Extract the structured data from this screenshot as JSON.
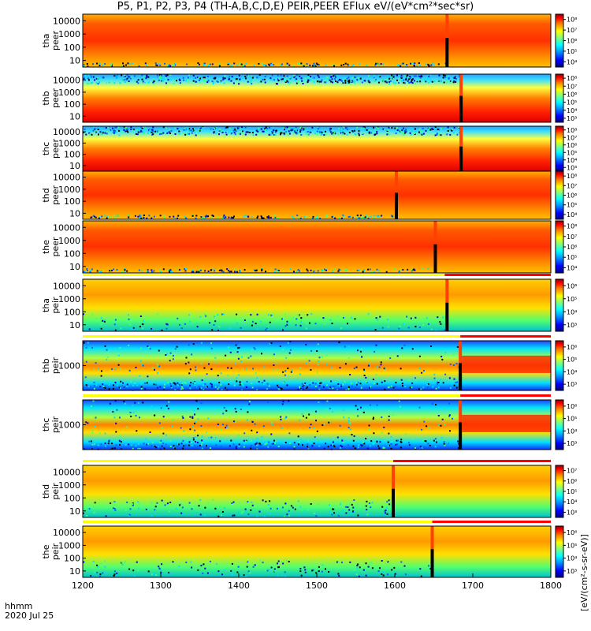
{
  "title": "P5, P1, P2, P3, P4 (TH-A,B,C,D,E) PEIR,PEER EFlux eV/(eV*cm²*sec*sr)",
  "footer": {
    "line1": "hhmm",
    "line2": "2020 Jul 25"
  },
  "colorbar_unit_label": "[eV/(cm²-s-sr-eV)]",
  "chart_data": {
    "type": "heatmap",
    "time_axis": {
      "ticks": [
        "1200",
        "1300",
        "1400",
        "1500",
        "1600",
        "1700",
        "1800"
      ],
      "range_hhmm": [
        1200,
        1800
      ]
    },
    "panels": [
      {
        "label": "tha\npeer",
        "yticks": [
          "10",
          "100",
          "1000",
          "10000"
        ],
        "cbar_ticks": [
          "10⁴",
          "10⁵",
          "10⁶",
          "10⁷",
          "10⁸"
        ],
        "bar": "none",
        "spike_hhmm": 1667
      },
      {
        "label": "thb\npeer",
        "yticks": [
          "10",
          "100",
          "1000",
          "10000"
        ],
        "cbar_ticks": [
          "10³",
          "10⁴",
          "10⁵",
          "10⁶",
          "10⁷",
          "10⁸"
        ],
        "bar": "none",
        "spike_hhmm": 1685
      },
      {
        "label": "thc\npeer",
        "yticks": [
          "10",
          "100",
          "1000",
          "10000"
        ],
        "cbar_ticks": [
          "10³",
          "10⁴",
          "10⁵",
          "10⁶",
          "10⁷",
          "10⁸"
        ],
        "bar": "none",
        "spike_hhmm": 1685
      },
      {
        "label": "thd\npeer",
        "yticks": [
          "10",
          "100",
          "1000",
          "10000"
        ],
        "cbar_ticks": [
          "10⁴",
          "10⁵",
          "10⁶",
          "10⁷",
          "10⁸"
        ],
        "bar": "none",
        "spike_hhmm": 1602
      },
      {
        "label": "the\npeer",
        "yticks": [
          "10",
          "100",
          "1000",
          "10000"
        ],
        "cbar_ticks": [
          "10⁴",
          "10⁵",
          "10⁶",
          "10⁷",
          "10⁸"
        ],
        "bar": "none",
        "spike_hhmm": 1652
      },
      {
        "label": "tha\npeir",
        "yticks": [
          "10",
          "100",
          "1000",
          "10000"
        ],
        "cbar_ticks": [
          "10³",
          "10⁴",
          "10⁵",
          "10⁶"
        ],
        "bar": "red-after",
        "bar_switch_hhmm": 1664,
        "spike_hhmm": 1667
      },
      {
        "label": "thb\npeir",
        "yticks": [
          "1000"
        ],
        "cbar_ticks": [
          "10³",
          "10⁴",
          "10⁵",
          "10⁶"
        ],
        "bar": "red-after",
        "bar_switch_hhmm": 1684,
        "spike_hhmm": 1684
      },
      {
        "label": "thc\npeir",
        "yticks": [
          "1000"
        ],
        "cbar_ticks": [
          "10³",
          "10⁴",
          "10⁵",
          "10⁶"
        ],
        "bar": "red-after",
        "bar_switch_hhmm": 1684,
        "spike_hhmm": 1684
      },
      {
        "label": "thd\npeir",
        "yticks": [
          "10",
          "100",
          "1000",
          "10000"
        ],
        "cbar_ticks": [
          "10³",
          "10⁴",
          "10⁵",
          "10⁶",
          "10⁷"
        ],
        "bar": "red-after",
        "bar_switch_hhmm": 1598,
        "spike_hhmm": 1598
      },
      {
        "label": "the\npeir",
        "yticks": [
          "10",
          "100",
          "1000",
          "10000"
        ],
        "cbar_ticks": [
          "10³",
          "10⁴",
          "10⁵",
          "10⁶"
        ],
        "bar": "red-after",
        "bar_switch_hhmm": 1648,
        "spike_hhmm": 1648
      }
    ],
    "colormap": [
      "#00007f",
      "#0000ff",
      "#0080ff",
      "#00ffff",
      "#80ff80",
      "#ffff00",
      "#ff8000",
      "#ff0000",
      "#7f0000"
    ]
  }
}
